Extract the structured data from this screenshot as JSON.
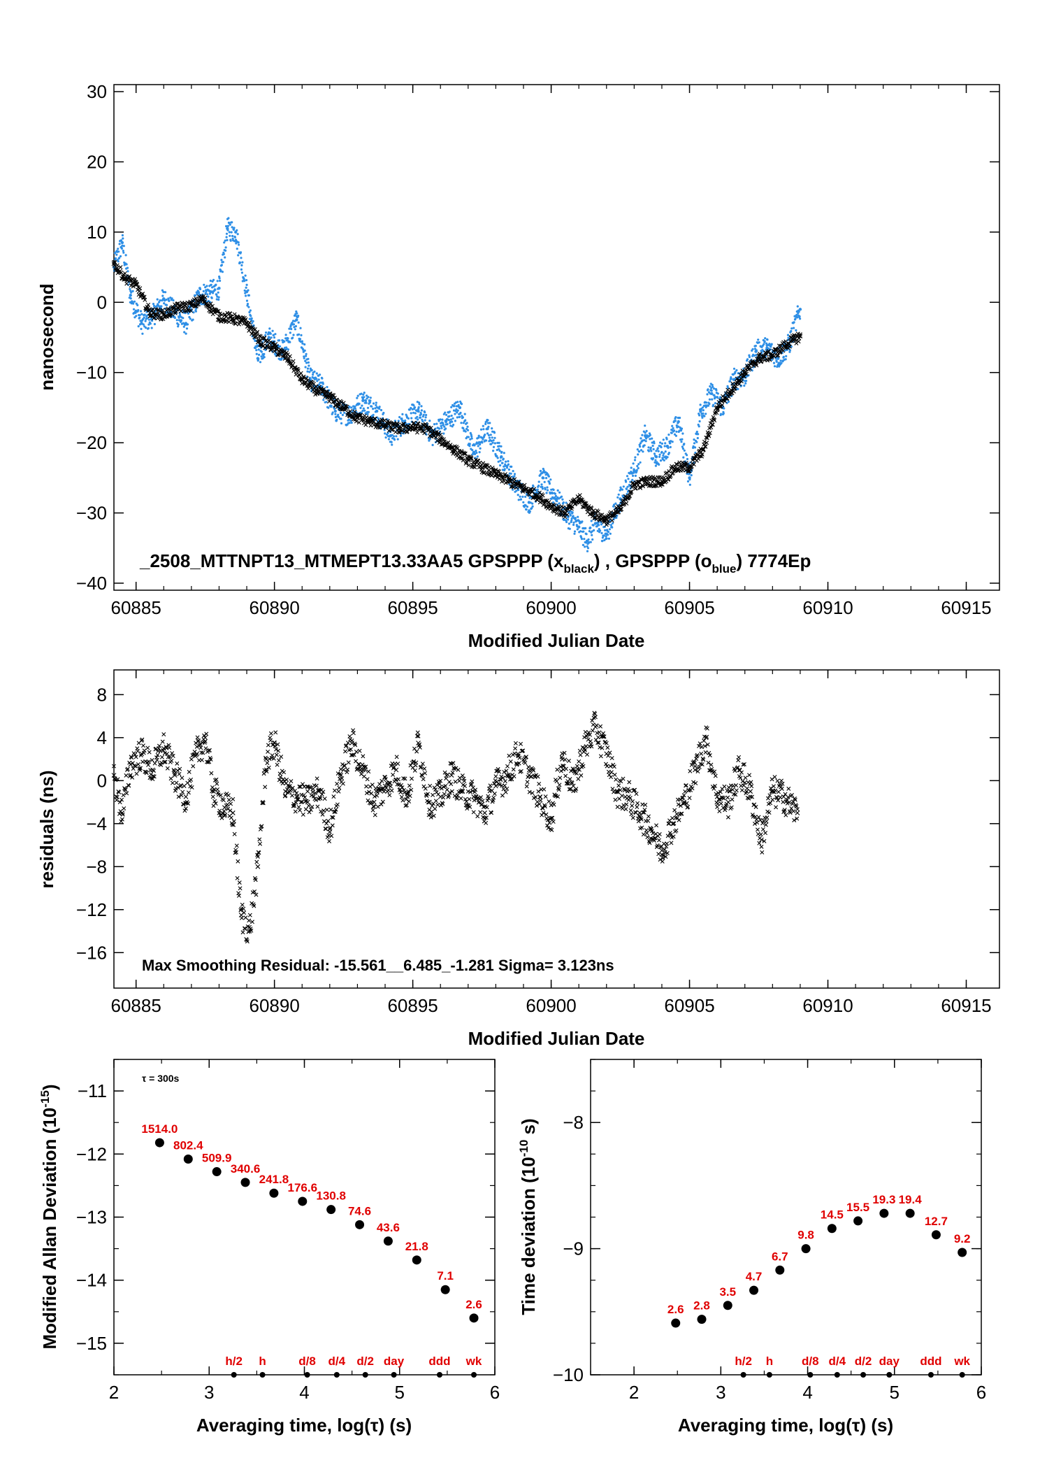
{
  "chart_data": [
    {
      "type": "scatter",
      "id": "timeseries",
      "title": "_2508_MTTNPT13_MTMEPT13.33AA5     GPSPPP (x",
      "title_sub1": "black",
      "title_mid": ") ,  GPSPPP (o",
      "title_sub2": "blue",
      "title_end": ")  7774Ep",
      "xlabel": "Modified Julian Date",
      "ylabel": "nanosecond",
      "xlim": [
        60884.2,
        60916.2
      ],
      "ylim": [
        -41,
        31
      ],
      "xticks": [
        60885,
        60890,
        60895,
        60900,
        60905,
        60910,
        60915
      ],
      "yticks": [
        30,
        20,
        10,
        0,
        -10,
        -20,
        -30,
        -40
      ],
      "series": [
        {
          "marker": "x",
          "color": "#000000",
          "x": [
            60884.2,
            60884.6,
            60885.0,
            60885.5,
            60886.0,
            60886.5,
            60887.0,
            60887.4,
            60888.0,
            60888.5,
            60889.0,
            60889.5,
            60890.0,
            60890.5,
            60891.0,
            60891.5,
            60892.0,
            60892.5,
            60893.0,
            60893.5,
            60894.0,
            60894.5,
            60895.0,
            60895.5,
            60896.0,
            60896.5,
            60897.0,
            60897.5,
            60898.0,
            60898.5,
            60899.0,
            60899.5,
            60900.0,
            60900.5,
            60901.0,
            60901.5,
            60902.0,
            60902.5,
            60903.0,
            60903.5,
            60904.0,
            60904.5,
            60905.0,
            60905.5,
            60906.0,
            60906.5,
            60907.0,
            60907.5,
            60908.0,
            60908.5,
            60909.0
          ],
          "y": [
            5.5,
            3.5,
            2.5,
            -1.5,
            -1.8,
            -0.8,
            -0.5,
            0.5,
            -2.0,
            -2.3,
            -3.0,
            -5.5,
            -6.5,
            -8.0,
            -11.0,
            -12.5,
            -13.5,
            -15.0,
            -16.5,
            -17.0,
            -17.5,
            -18.0,
            -17.8,
            -18.0,
            -19.5,
            -21.0,
            -22.5,
            -23.5,
            -24.5,
            -25.5,
            -26.5,
            -27.5,
            -29.0,
            -30.0,
            -28.0,
            -30.0,
            -31.0,
            -29.5,
            -26.0,
            -25.5,
            -25.5,
            -23.5,
            -23.5,
            -21.0,
            -15.0,
            -12.5,
            -10.0,
            -8.0,
            -7.5,
            -6.0,
            -4.8
          ]
        },
        {
          "marker": "dot",
          "color": "#2e8fe6",
          "x": [
            60884.2,
            60884.5,
            60884.8,
            60885.2,
            60885.6,
            60886.0,
            60886.4,
            60886.8,
            60887.3,
            60887.7,
            60888.0,
            60888.3,
            60888.6,
            60889.0,
            60889.4,
            60889.8,
            60890.3,
            60890.8,
            60891.3,
            60891.7,
            60892.2,
            60892.7,
            60893.2,
            60893.7,
            60894.2,
            60894.7,
            60895.2,
            60895.7,
            60896.2,
            60896.7,
            60897.2,
            60897.7,
            60898.2,
            60898.7,
            60899.2,
            60899.7,
            60900.2,
            60900.6,
            60901.0,
            60901.3,
            60901.6,
            60902.0,
            60902.5,
            60903.0,
            60903.4,
            60903.8,
            60904.2,
            60904.6,
            60905.0,
            60905.4,
            60905.8,
            60906.2,
            60906.6,
            60907.0,
            60907.4,
            60907.8,
            60908.2,
            60908.6,
            60909.0
          ],
          "y": [
            5.0,
            8.5,
            1.0,
            -3.0,
            -2.0,
            0.5,
            -1.5,
            -3.0,
            1.0,
            1.5,
            2.0,
            10.5,
            10.0,
            1.5,
            -8.0,
            -5.0,
            -7.0,
            -2.5,
            -11.0,
            -12.0,
            -15.5,
            -16.0,
            -14.0,
            -15.5,
            -19.0,
            -17.0,
            -15.5,
            -19.0,
            -17.0,
            -15.0,
            -21.5,
            -18.0,
            -22.0,
            -26.0,
            -28.5,
            -25.0,
            -28.0,
            -30.5,
            -32.0,
            -34.0,
            -31.5,
            -33.0,
            -28.0,
            -24.0,
            -19.0,
            -22.0,
            -20.5,
            -17.0,
            -25.0,
            -15.5,
            -13.0,
            -15.0,
            -11.0,
            -10.5,
            -7.0,
            -6.5,
            -8.0,
            -6.0,
            -1.0
          ]
        }
      ]
    },
    {
      "type": "scatter",
      "id": "residuals",
      "xlabel": "Modified Julian Date",
      "ylabel": "residuals (ns)",
      "annotation": "Max Smoothing Residual: -15.561__6.485_-1.281  Sigma= 3.123ns",
      "xlim": [
        60884.2,
        60916.2
      ],
      "ylim": [
        -19.3,
        10.3
      ],
      "xticks": [
        60885,
        60890,
        60895,
        60900,
        60905,
        60910,
        60915
      ],
      "yticks": [
        8,
        4,
        0,
        -4,
        -8,
        -12,
        -16
      ],
      "series": [
        {
          "marker": "x",
          "color": "#000000",
          "x": [
            60884.2,
            60884.5,
            60884.8,
            60885.2,
            60885.6,
            60886.0,
            60886.4,
            60886.8,
            60887.2,
            60887.5,
            60887.8,
            60888.2,
            60888.5,
            60888.8,
            60889.1,
            60889.4,
            60889.7,
            60890.0,
            60890.4,
            60890.8,
            60891.2,
            60891.6,
            60892.0,
            60892.4,
            60892.8,
            60893.2,
            60893.6,
            60894.0,
            60894.4,
            60894.8,
            60895.2,
            60895.6,
            60896.0,
            60896.4,
            60896.8,
            60897.2,
            60897.6,
            60898.0,
            60898.4,
            60898.8,
            60899.2,
            60899.6,
            60900.0,
            60900.4,
            60900.8,
            60901.2,
            60901.6,
            60902.0,
            60902.4,
            60902.8,
            60903.2,
            60903.6,
            60904.0,
            60904.4,
            60904.8,
            60905.2,
            60905.6,
            60906.0,
            60906.4,
            60906.8,
            60907.2,
            60907.6,
            60908.0,
            60908.4,
            60908.9
          ],
          "y": [
            0.5,
            -3.0,
            1.5,
            2.5,
            1.0,
            3.0,
            0.5,
            -1.5,
            2.5,
            4.0,
            -1.0,
            -2.5,
            -3.0,
            -12.5,
            -14.0,
            -8.0,
            2.0,
            3.5,
            -1.0,
            -1.5,
            -2.0,
            -1.0,
            -4.5,
            0.5,
            3.5,
            1.0,
            -2.0,
            -0.5,
            1.0,
            -1.5,
            3.5,
            -2.0,
            -1.5,
            0.5,
            -1.0,
            -1.5,
            -3.0,
            -0.5,
            0.5,
            2.5,
            0.5,
            -1.5,
            -3.5,
            2.0,
            -0.5,
            3.0,
            5.0,
            2.5,
            -1.0,
            -1.5,
            -3.0,
            -4.5,
            -6.5,
            -4.0,
            -2.0,
            1.0,
            4.0,
            -1.5,
            -2.0,
            1.0,
            -1.0,
            -5.5,
            -1.0,
            -1.5,
            -3.0
          ]
        }
      ]
    },
    {
      "type": "scatter",
      "id": "modified-allan-deviation",
      "xlabel": "Averaging time, log(τ) (s)",
      "ylabel": "Modified Allan Deviation (10",
      "ylabel_sup": "-15",
      "ylabel_end": ")",
      "note": "τ = 300s",
      "xlim": [
        2,
        6
      ],
      "ylim": [
        -15.5,
        -10.5
      ],
      "xticks": [
        2,
        3,
        4,
        5,
        6
      ],
      "yticks": [
        -11,
        -12,
        -13,
        -14,
        -15
      ],
      "x": [
        2.48,
        2.78,
        3.08,
        3.38,
        3.68,
        3.98,
        4.28,
        4.58,
        4.88,
        5.18,
        5.48,
        5.78
      ],
      "y": [
        -11.82,
        -12.08,
        -12.28,
        -12.45,
        -12.62,
        -12.75,
        -12.88,
        -13.12,
        -13.38,
        -13.68,
        -14.15,
        -14.6
      ],
      "labels": [
        "1514.0",
        "802.4",
        "509.9",
        "340.6",
        "241.8",
        "176.6",
        "130.8",
        "74.6",
        "43.6",
        "21.8",
        "7.1",
        "2.6"
      ],
      "markers": [
        {
          "label": "h/2",
          "x": 3.26
        },
        {
          "label": "h",
          "x": 3.56
        },
        {
          "label": "d/8",
          "x": 4.03
        },
        {
          "label": "d/4",
          "x": 4.34
        },
        {
          "label": "d/2",
          "x": 4.64
        },
        {
          "label": "day",
          "x": 4.94
        },
        {
          "label": "ddd",
          "x": 5.42
        },
        {
          "label": "wk",
          "x": 5.78
        }
      ]
    },
    {
      "type": "scatter",
      "id": "time-deviation",
      "xlabel": "Averaging time, log(τ) (s)",
      "ylabel": "Time deviation (10",
      "ylabel_sup": "-10",
      "ylabel_end": " s)",
      "xlim": [
        1.5,
        6
      ],
      "ylim": [
        -10,
        -7.5
      ],
      "xticks": [
        2,
        3,
        4,
        5,
        6
      ],
      "yticks": [
        -8,
        -9,
        -10
      ],
      "x": [
        2.48,
        2.78,
        3.08,
        3.38,
        3.68,
        3.98,
        4.28,
        4.58,
        4.88,
        5.18,
        5.48,
        5.78
      ],
      "y": [
        -9.59,
        -9.56,
        -9.45,
        -9.33,
        -9.17,
        -9.0,
        -8.84,
        -8.78,
        -8.72,
        -8.72,
        -8.89,
        -9.03
      ],
      "labels": [
        "2.6",
        "2.8",
        "3.5",
        "4.7",
        "6.7",
        "9.8",
        "14.5",
        "15.5",
        "19.3",
        "19.4",
        "12.7",
        "9.2"
      ],
      "markers": [
        {
          "label": "h/2",
          "x": 3.26
        },
        {
          "label": "h",
          "x": 3.56
        },
        {
          "label": "d/8",
          "x": 4.03
        },
        {
          "label": "d/4",
          "x": 4.34
        },
        {
          "label": "d/2",
          "x": 4.64
        },
        {
          "label": "day",
          "x": 4.94
        },
        {
          "label": "ddd",
          "x": 5.42
        },
        {
          "label": "wk",
          "x": 5.78
        }
      ]
    }
  ]
}
